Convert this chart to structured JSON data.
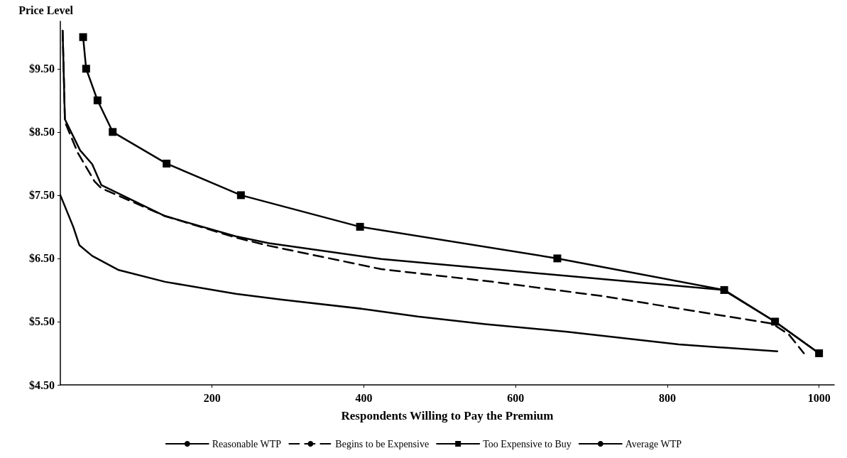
{
  "chart_data": {
    "type": "line",
    "ylabel": "Price Level",
    "xlabel": "Respondents Willing to Pay the Premium",
    "xlim": [
      0,
      1020
    ],
    "xticks": [
      200,
      400,
      600,
      800,
      1000
    ],
    "ylim": [
      4.5,
      10.25
    ],
    "yticks": [
      {
        "value": 4.5,
        "label": "$4.50"
      },
      {
        "value": 5.5,
        "label": "$5.50"
      },
      {
        "value": 6.5,
        "label": "$6.50"
      },
      {
        "value": 7.5,
        "label": "$7.50"
      },
      {
        "value": 8.5,
        "label": "$8.50"
      },
      {
        "value": 9.5,
        "label": "$9.50"
      }
    ],
    "grid": false,
    "legend": "bottom",
    "series": [
      {
        "name": "Reasonable WTP",
        "color": "#000000",
        "line_style": "solid",
        "marker": "none",
        "x": [
          0,
          17,
          25,
          42,
          76,
          138,
          231,
          290,
          400,
          471,
          560,
          668,
          815,
          945
        ],
        "values": [
          7.5,
          7.0,
          6.71,
          6.54,
          6.32,
          6.13,
          5.94,
          5.85,
          5.7,
          5.58,
          5.46,
          5.34,
          5.14,
          5.03
        ]
      },
      {
        "name": "Begins to be Expensive",
        "color": "#000000",
        "line_style": "dashed",
        "marker": "none",
        "x": [
          3,
          5,
          6,
          23,
          45,
          54,
          138,
          231,
          275,
          423,
          570,
          717,
          865,
          938,
          960,
          980
        ],
        "values": [
          10.1,
          9.2,
          8.66,
          8.17,
          7.72,
          7.61,
          7.17,
          6.83,
          6.7,
          6.33,
          6.13,
          5.9,
          5.61,
          5.47,
          5.3,
          5.0
        ]
      },
      {
        "name": "Too Expensive to Buy",
        "color": "#000000",
        "line_style": "solid",
        "marker": "square",
        "x": [
          30,
          34,
          49,
          69,
          140,
          238,
          395,
          655,
          875,
          942,
          1000
        ],
        "values": [
          10,
          9.5,
          9,
          8.5,
          8,
          7.5,
          7,
          6.5,
          6,
          5.5,
          5
        ]
      },
      {
        "name": "Average WTP",
        "color": "#000000",
        "line_style": "solid",
        "marker": "none",
        "x": [
          3,
          6,
          26,
          42,
          54,
          138,
          231,
          275,
          423,
          570,
          717,
          874,
          942,
          1000
        ],
        "values": [
          10.1,
          8.7,
          8.21,
          7.99,
          7.66,
          7.17,
          6.85,
          6.74,
          6.49,
          6.33,
          6.17,
          6.0,
          5.5,
          5.0
        ]
      }
    ]
  }
}
